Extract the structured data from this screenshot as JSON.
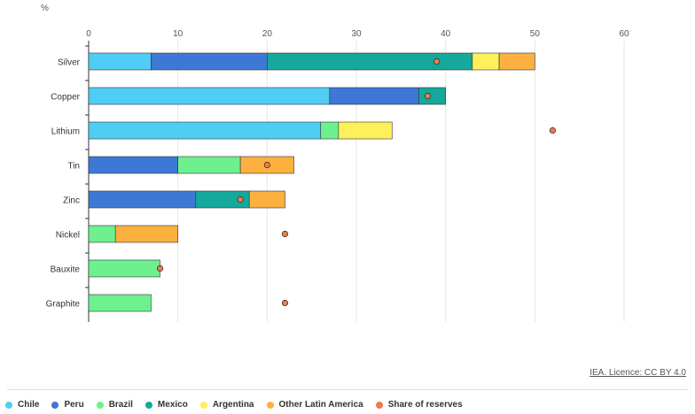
{
  "chart_data": {
    "type": "bar",
    "orientation": "horizontal",
    "stacked": true,
    "unit_label": "%",
    "categories": [
      "Silver",
      "Copper",
      "Lithium",
      "Tin",
      "Zinc",
      "Nickel",
      "Bauxite",
      "Graphite"
    ],
    "series": [
      {
        "name": "Chile",
        "color": "#4fcdf5",
        "values": [
          7,
          27,
          26,
          0,
          0,
          0,
          0,
          0
        ]
      },
      {
        "name": "Peru",
        "color": "#3d78d6",
        "values": [
          13,
          10,
          0,
          10,
          12,
          0,
          0,
          0
        ]
      },
      {
        "name": "Brazil",
        "color": "#6ef08e",
        "values": [
          0,
          0,
          2,
          7,
          0,
          3,
          8,
          7
        ]
      },
      {
        "name": "Mexico",
        "color": "#14a99a",
        "values": [
          23,
          3,
          0,
          0,
          6,
          0,
          0,
          0
        ]
      },
      {
        "name": "Argentina",
        "color": "#fdf05a",
        "values": [
          3,
          0,
          6,
          0,
          0,
          0,
          0,
          0
        ]
      },
      {
        "name": "Other Latin America",
        "color": "#fbb040",
        "values": [
          4,
          0,
          0,
          6,
          4,
          7,
          0,
          0
        ]
      }
    ],
    "reserves": {
      "name": "Share of reserves",
      "color": "#f07a4c",
      "values": [
        39,
        38,
        52,
        20,
        17,
        22,
        8,
        22
      ]
    },
    "xlim": [
      0,
      60
    ],
    "xticks": [
      "0",
      "10",
      "20",
      "30",
      "40",
      "50",
      "60"
    ],
    "grid": true,
    "legend_position": "bottom"
  },
  "credit": "IEA. Licence: CC BY 4.0"
}
